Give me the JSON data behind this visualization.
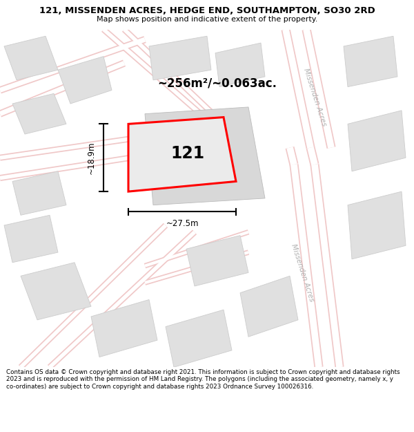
{
  "title_line1": "121, MISSENDEN ACRES, HEDGE END, SOUTHAMPTON, SO30 2RD",
  "title_line2": "Map shows position and indicative extent of the property.",
  "footer_text": "Contains OS data © Crown copyright and database right 2021. This information is subject to Crown copyright and database rights 2023 and is reproduced with the permission of HM Land Registry. The polygons (including the associated geometry, namely x, y co-ordinates) are subject to Crown copyright and database rights 2023 Ordnance Survey 100026316.",
  "bg_color": "#f2f2f2",
  "road_color": "#ffffff",
  "road_border_color": "#f0c8c8",
  "building_color": "#e0e0e0",
  "building_border_color": "#cccccc",
  "plot_color": "red",
  "area_text": "~256m²/~0.063ac.",
  "width_text": "~27.5m",
  "height_text": "~18.9m",
  "plot_label": "121",
  "street_label": "Missenden Acres"
}
